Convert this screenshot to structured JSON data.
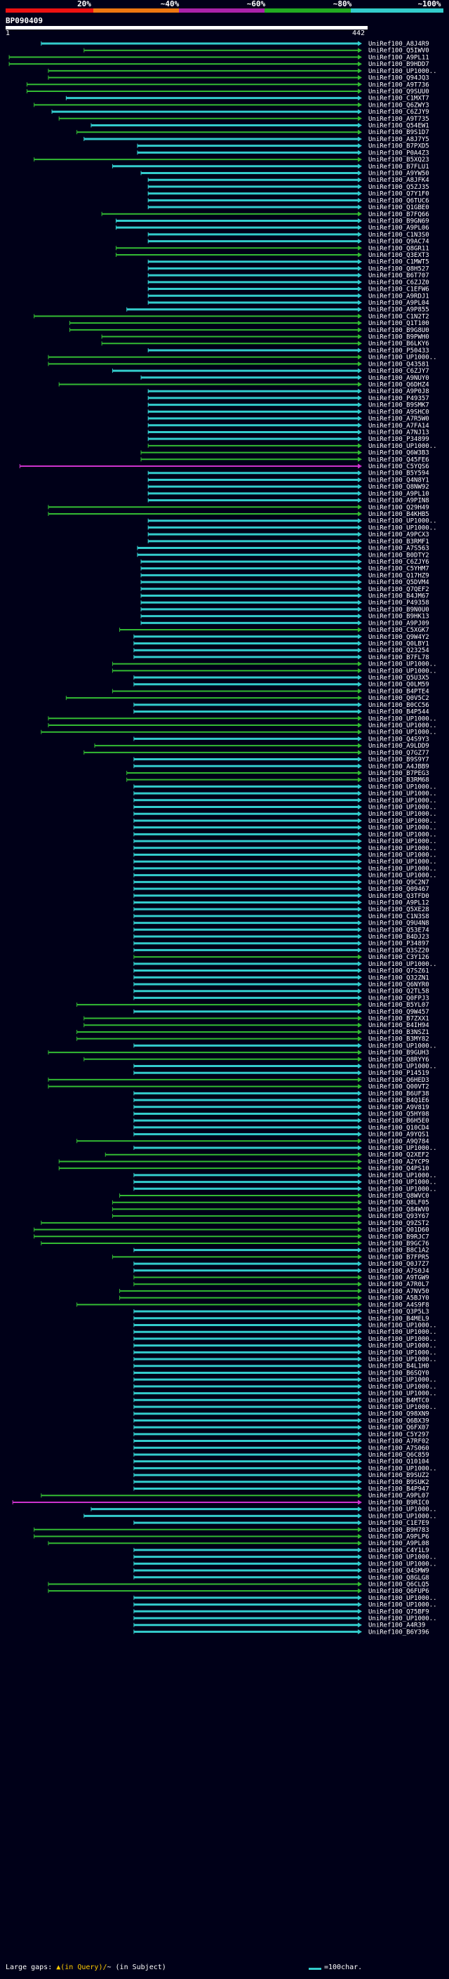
{
  "legend": {
    "percent_labels": [
      "20%",
      "~40%",
      "~60%",
      "~80%",
      "~100%"
    ],
    "segment_colors": [
      "#ee1111",
      "#ee7711",
      "#aa22aa",
      "#22aa22",
      "#33cccc"
    ]
  },
  "query": {
    "name": "BP090409",
    "start": "1",
    "end": "442"
  },
  "hit_colors": {
    "cyan": "#33cccc",
    "green": "#33bb33",
    "magenta": "#cc33cc",
    "gap": "#ffcc00"
  },
  "hits": [
    [
      "UniRef100_A8J4R9",
      "cyan",
      0.1
    ],
    [
      "UniRef100_Q5IWV0",
      "green",
      0.22
    ],
    [
      "UniRef100_A9PL11",
      "green",
      0.01
    ],
    [
      "UniRef100_B9HDD7",
      "green",
      0.01
    ],
    [
      "UniRef100_UP1000..",
      "green",
      0.12
    ],
    [
      "UniRef100_Q94JQ3",
      "green",
      0.12
    ],
    [
      "UniRef100_A9T736",
      "green",
      0.06
    ],
    [
      "UniRef100_Q9SUU0",
      "green",
      0.06
    ],
    [
      "UniRef100_C1MXT7",
      "cyan",
      0.17
    ],
    [
      "UniRef100_Q6ZWY3",
      "green",
      0.08
    ],
    [
      "UniRef100_C6ZJY9",
      "cyan",
      0.13
    ],
    [
      "UniRef100_A9T735",
      "green",
      0.15
    ],
    [
      "UniRef100_Q54EW1",
      "cyan",
      0.24
    ],
    [
      "UniRef100_B9S1D7",
      "green",
      0.2
    ],
    [
      "UniRef100_A8J7Y5",
      "cyan",
      0.22
    ],
    [
      "UniRef100_B7PXD5",
      "cyan",
      0.37
    ],
    [
      "UniRef100_P0A4Z3",
      "cyan",
      0.37
    ],
    [
      "UniRef100_B5XQ23",
      "green",
      0.08
    ],
    [
      "UniRef100_B7FLU1",
      "cyan",
      0.3
    ],
    [
      "UniRef100_A9YW50",
      "cyan",
      0.38
    ],
    [
      "UniRef100_A8JFK4",
      "cyan",
      0.4
    ],
    [
      "UniRef100_Q5ZJ35",
      "cyan",
      0.4
    ],
    [
      "UniRef100_Q7Y1F0",
      "cyan",
      0.4
    ],
    [
      "UniRef100_Q6TUC6",
      "cyan",
      0.4
    ],
    [
      "UniRef100_Q1GBE0",
      "cyan",
      0.4
    ],
    [
      "UniRef100_B7FQ66",
      "green",
      0.27
    ],
    [
      "UniRef100_B9GN69",
      "cyan",
      0.31
    ],
    [
      "UniRef100_A9PL06",
      "cyan",
      0.31
    ],
    [
      "UniRef100_C1N3S0",
      "cyan",
      0.4
    ],
    [
      "UniRef100_Q9AC74",
      "cyan",
      0.4
    ],
    [
      "UniRef100_Q8GR11",
      "green",
      0.31
    ],
    [
      "UniRef100_Q3EXT3",
      "green",
      0.31
    ],
    [
      "UniRef100_C1MWT5",
      "cyan",
      0.4
    ],
    [
      "UniRef100_Q8H527",
      "cyan",
      0.4
    ],
    [
      "UniRef100_B6T707",
      "cyan",
      0.4
    ],
    [
      "UniRef100_C6ZJZ0",
      "cyan",
      0.4
    ],
    [
      "UniRef100_C1EFW6",
      "cyan",
      0.4
    ],
    [
      "UniRef100_A9RDJ1",
      "cyan",
      0.4
    ],
    [
      "UniRef100_A9PL04",
      "cyan",
      0.4
    ],
    [
      "UniRef100_A9P855",
      "cyan",
      0.34
    ],
    [
      "UniRef100_C1N2T2",
      "green",
      0.08
    ],
    [
      "UniRef100_Q1T100",
      "green",
      0.18
    ],
    [
      "UniRef100_B9G8U0",
      "green",
      0.18
    ],
    [
      "UniRef100_B9PWH0",
      "green",
      0.27
    ],
    [
      "UniRef100_B6LKY6",
      "green",
      0.27
    ],
    [
      "UniRef100_P50433",
      "cyan",
      0.4
    ],
    [
      "UniRef100_UP1000..",
      "green",
      0.12
    ],
    [
      "UniRef100_Q43581",
      "green",
      0.12
    ],
    [
      "UniRef100_C6ZJY7",
      "cyan",
      0.3
    ],
    [
      "UniRef100_A9NUY0",
      "cyan",
      0.38
    ],
    [
      "UniRef100_Q6DHZ4",
      "green",
      0.15
    ],
    [
      "UniRef100_A9P0J8",
      "cyan",
      0.4
    ],
    [
      "UniRef100_P49357",
      "cyan",
      0.4
    ],
    [
      "UniRef100_B9SMK7",
      "cyan",
      0.4
    ],
    [
      "UniRef100_A9SHC0",
      "cyan",
      0.4
    ],
    [
      "UniRef100_A7R5W0",
      "cyan",
      0.4
    ],
    [
      "UniRef100_A7FA14",
      "cyan",
      0.4
    ],
    [
      "UniRef100_A7NJ13",
      "cyan",
      0.4
    ],
    [
      "UniRef100_P34899",
      "cyan",
      0.4
    ],
    [
      "UniRef100_UP1000..",
      "green",
      0.4
    ],
    [
      "UniRef100_Q6W3B3",
      "green",
      0.38
    ],
    [
      "UniRef100_Q45FE6",
      "green",
      0.38
    ],
    [
      "UniRef100_C5YQS6",
      "magenta",
      0.04
    ],
    [
      "UniRef100_B5Y594",
      "cyan",
      0.4
    ],
    [
      "UniRef100_Q4N8Y1",
      "cyan",
      0.4
    ],
    [
      "UniRef100_Q8NW92",
      "cyan",
      0.4
    ],
    [
      "UniRef100_A9PL10",
      "cyan",
      0.4
    ],
    [
      "UniRef100_A9PIN8",
      "cyan",
      0.4
    ],
    [
      "UniRef100_Q29H49",
      "green",
      0.12
    ],
    [
      "UniRef100_B4KHB5",
      "green",
      0.12
    ],
    [
      "UniRef100_UP1000..",
      "cyan",
      0.4
    ],
    [
      "UniRef100_UP1000..",
      "cyan",
      0.4
    ],
    [
      "UniRef100_A9PCX3",
      "cyan",
      0.4
    ],
    [
      "UniRef100_B3RMF1",
      "cyan",
      0.4
    ],
    [
      "UniRef100_A7S563",
      "cyan",
      0.37
    ],
    [
      "UniRef100_B0DTY2",
      "cyan",
      0.37
    ],
    [
      "UniRef100_C6ZJY6",
      "cyan",
      0.38
    ],
    [
      "UniRef100_C5YHM7",
      "cyan",
      0.38
    ],
    [
      "UniRef100_Q17HZ9",
      "cyan",
      0.38
    ],
    [
      "UniRef100_Q5DVM4",
      "cyan",
      0.38
    ],
    [
      "UniRef100_Q7QEF2",
      "cyan",
      0.38
    ],
    [
      "UniRef100_B4JM67",
      "cyan",
      0.38
    ],
    [
      "UniRef100_P49358",
      "cyan",
      0.38
    ],
    [
      "UniRef100_B9N0U0",
      "cyan",
      0.38
    ],
    [
      "UniRef100_B9HK13",
      "cyan",
      0.38
    ],
    [
      "UniRef100_A9PJ09",
      "cyan",
      0.38
    ],
    [
      "UniRef100_C5XGK7",
      "green",
      0.32
    ],
    [
      "UniRef100_Q9W4Y2",
      "cyan",
      0.36
    ],
    [
      "UniRef100_Q0LBY1",
      "cyan",
      0.36
    ],
    [
      "UniRef100_Q23254",
      "cyan",
      0.36
    ],
    [
      "UniRef100_B7FL78",
      "cyan",
      0.36
    ],
    [
      "UniRef100_UP1000..",
      "green",
      0.3
    ],
    [
      "UniRef100_UP1000..",
      "green",
      0.3
    ],
    [
      "UniRef100_Q5U3X5",
      "cyan",
      0.36
    ],
    [
      "UniRef100_Q0LM59",
      "cyan",
      0.36
    ],
    [
      "UniRef100_B4PTE4",
      "green",
      0.3
    ],
    [
      "UniRef100_Q0V5C2",
      "green",
      0.17
    ],
    [
      "UniRef100_B0CC56",
      "cyan",
      0.36
    ],
    [
      "UniRef100_B4P544",
      "cyan",
      0.36
    ],
    [
      "UniRef100_UP1000..",
      "green",
      0.12
    ],
    [
      "UniRef100_UP1000..",
      "green",
      0.12
    ],
    [
      "UniRef100_UP1000..",
      "green",
      0.1
    ],
    [
      "UniRef100_Q4S9Y3",
      "cyan",
      0.36
    ],
    [
      "UniRef100_A9LDD9",
      "green",
      0.25
    ],
    [
      "UniRef100_Q7GZ77",
      "green",
      0.22
    ],
    [
      "UniRef100_B9S9Y7",
      "cyan",
      0.36
    ],
    [
      "UniRef100_A4JBB9",
      "cyan",
      0.36
    ],
    [
      "UniRef100_B7PEG3",
      "green",
      0.34
    ],
    [
      "UniRef100_B3RM68",
      "green",
      0.34
    ],
    [
      "UniRef100_UP1000..",
      "cyan",
      0.36
    ],
    [
      "UniRef100_UP1000..",
      "cyan",
      0.36
    ],
    [
      "UniRef100_UP1000..",
      "cyan",
      0.36
    ],
    [
      "UniRef100_UP1000..",
      "cyan",
      0.36
    ],
    [
      "UniRef100_UP1000..",
      "cyan",
      0.36
    ],
    [
      "UniRef100_UP1000..",
      "cyan",
      0.36
    ],
    [
      "UniRef100_UP1000..",
      "cyan",
      0.36
    ],
    [
      "UniRef100_UP1000..",
      "cyan",
      0.36
    ],
    [
      "UniRef100_UP1000..",
      "cyan",
      0.36
    ],
    [
      "UniRef100_UP1000..",
      "cyan",
      0.36
    ],
    [
      "UniRef100_UP1000..",
      "cyan",
      0.36
    ],
    [
      "UniRef100_UP1000..",
      "cyan",
      0.36
    ],
    [
      "UniRef100_UP1000..",
      "cyan",
      0.36
    ],
    [
      "UniRef100_UP1000..",
      "cyan",
      0.36
    ],
    [
      "UniRef100_Q9C2N7",
      "cyan",
      0.36
    ],
    [
      "UniRef100_Q09467",
      "cyan",
      0.36
    ],
    [
      "UniRef100_Q3TFD0",
      "cyan",
      0.36
    ],
    [
      "UniRef100_A9PL12",
      "cyan",
      0.36
    ],
    [
      "UniRef100_Q5XE28",
      "cyan",
      0.36
    ],
    [
      "UniRef100_C1N3S8",
      "cyan",
      0.36
    ],
    [
      "UniRef100_Q9U4N8",
      "cyan",
      0.36
    ],
    [
      "UniRef100_Q53E74",
      "cyan",
      0.36
    ],
    [
      "UniRef100_B4DJ23",
      "cyan",
      0.36
    ],
    [
      "UniRef100_P34897",
      "cyan",
      0.36
    ],
    [
      "UniRef100_Q3SZ20",
      "cyan",
      0.36
    ],
    [
      "UniRef100_C3Y126",
      "green",
      0.36
    ],
    [
      "UniRef100_UP1000..",
      "cyan",
      0.36
    ],
    [
      "UniRef100_Q7SZ61",
      "cyan",
      0.36
    ],
    [
      "UniRef100_Q32ZN1",
      "cyan",
      0.36
    ],
    [
      "UniRef100_Q6NYR0",
      "cyan",
      0.36
    ],
    [
      "UniRef100_Q2TL58",
      "cyan",
      0.36
    ],
    [
      "UniRef100_Q0FPJ3",
      "cyan",
      0.36
    ],
    [
      "UniRef100_B5YL07",
      "green",
      0.2
    ],
    [
      "UniRef100_Q9W457",
      "cyan",
      0.36
    ],
    [
      "UniRef100_B7ZXX1",
      "green",
      0.22
    ],
    [
      "UniRef100_B4IH94",
      "green",
      0.22
    ],
    [
      "UniRef100_B3NSZ1",
      "green",
      0.2
    ],
    [
      "UniRef100_B3MY82",
      "green",
      0.2
    ],
    [
      "UniRef100_UP1000..",
      "cyan",
      0.36
    ],
    [
      "UniRef100_B9GUH3",
      "green",
      0.12
    ],
    [
      "UniRef100_Q8RYY6",
      "green",
      0.22
    ],
    [
      "UniRef100_UP1000..",
      "cyan",
      0.36
    ],
    [
      "UniRef100_P14519",
      "cyan",
      0.36
    ],
    [
      "UniRef100_Q6HED3",
      "green",
      0.12
    ],
    [
      "UniRef100_Q00VT2",
      "green",
      0.12
    ],
    [
      "UniRef100_B6UF38",
      "cyan",
      0.36
    ],
    [
      "UniRef100_B4Q1E6",
      "cyan",
      0.36
    ],
    [
      "UniRef100_A9V819",
      "cyan",
      0.36
    ],
    [
      "UniRef100_Q5HY08",
      "cyan",
      0.36
    ],
    [
      "UniRef100_B6H5E0",
      "cyan",
      0.36
    ],
    [
      "UniRef100_Q10CD4",
      "cyan",
      0.36
    ],
    [
      "UniRef100_A9YQS1",
      "cyan",
      0.36
    ],
    [
      "UniRef100_A9Q784",
      "green",
      0.2
    ],
    [
      "UniRef100_UP1000..",
      "cyan",
      0.36
    ],
    [
      "UniRef100_Q2XEF2",
      "green",
      0.28
    ],
    [
      "UniRef100_A2YCP9",
      "green",
      0.15
    ],
    [
      "UniRef100_Q4PS10",
      "green",
      0.15
    ],
    [
      "UniRef100_UP1000..",
      "cyan",
      0.36
    ],
    [
      "UniRef100_UP1000..",
      "cyan",
      0.36
    ],
    [
      "UniRef100_UP1000..",
      "cyan",
      0.36
    ],
    [
      "UniRef100_Q8WVC0",
      "green",
      0.32
    ],
    [
      "UniRef100_Q8LF05",
      "green",
      0.3
    ],
    [
      "UniRef100_Q84WV0",
      "green",
      0.3
    ],
    [
      "UniRef100_Q93Y67",
      "green",
      0.3
    ],
    [
      "UniRef100_Q9ZST2",
      "green",
      0.1
    ],
    [
      "UniRef100_Q01D60",
      "green",
      0.08
    ],
    [
      "UniRef100_B9RJC7",
      "green",
      0.08
    ],
    [
      "UniRef100_B9GC76",
      "green",
      0.1
    ],
    [
      "UniRef100_B8C1A2",
      "cyan",
      0.36
    ],
    [
      "UniRef100_B7FPR5",
      "green",
      0.3
    ],
    [
      "UniRef100_Q0J7Z7",
      "cyan",
      0.36
    ],
    [
      "UniRef100_A7S0J4",
      "cyan",
      0.36
    ],
    [
      "UniRef100_A9TGW9",
      "green",
      0.36
    ],
    [
      "UniRef100_A7R0L7",
      "green",
      0.36
    ],
    [
      "UniRef100_A7NV50",
      "green",
      0.32
    ],
    [
      "UniRef100_A5BJY0",
      "green",
      0.32
    ],
    [
      "UniRef100_A4S9F8",
      "green",
      0.2
    ],
    [
      "UniRef100_Q3P5L3",
      "cyan",
      0.36
    ],
    [
      "UniRef100_B4MEL9",
      "cyan",
      0.36
    ],
    [
      "UniRef100_UP1000..",
      "cyan",
      0.36
    ],
    [
      "UniRef100_UP1000..",
      "cyan",
      0.36
    ],
    [
      "UniRef100_UP1000..",
      "cyan",
      0.36
    ],
    [
      "UniRef100_UP1000..",
      "cyan",
      0.36
    ],
    [
      "UniRef100_UP1000..",
      "cyan",
      0.36
    ],
    [
      "UniRef100_UP1000..",
      "cyan",
      0.36
    ],
    [
      "UniRef100_B4L1H0",
      "cyan",
      0.36
    ],
    [
      "UniRef100_B6SQY0",
      "cyan",
      0.36
    ],
    [
      "UniRef100_UP1000..",
      "cyan",
      0.36
    ],
    [
      "UniRef100_UP1000..",
      "cyan",
      0.36
    ],
    [
      "UniRef100_UP1000..",
      "cyan",
      0.36
    ],
    [
      "UniRef100_B4MTC0",
      "cyan",
      0.36
    ],
    [
      "UniRef100_UP1000..",
      "cyan",
      0.36
    ],
    [
      "UniRef100_Q98XN9",
      "cyan",
      0.36
    ],
    [
      "UniRef100_Q6BX39",
      "cyan",
      0.36
    ],
    [
      "UniRef100_Q6FX07",
      "cyan",
      0.36
    ],
    [
      "UniRef100_C5Y297",
      "cyan",
      0.36
    ],
    [
      "UniRef100_A7RF02",
      "cyan",
      0.36
    ],
    [
      "UniRef100_A7S060",
      "cyan",
      0.36
    ],
    [
      "UniRef100_Q6C859",
      "cyan",
      0.36
    ],
    [
      "UniRef100_Q10104",
      "cyan",
      0.36
    ],
    [
      "UniRef100_UP1000..",
      "cyan",
      0.36
    ],
    [
      "UniRef100_B9SUZ2",
      "cyan",
      0.36
    ],
    [
      "UniRef100_B9SUK2",
      "cyan",
      0.36
    ],
    [
      "UniRef100_B4P947",
      "cyan",
      0.36
    ],
    [
      "UniRef100_A9PL07",
      "green",
      0.1
    ],
    [
      "UniRef100_B9RIC0",
      "magenta",
      0.02
    ],
    [
      "UniRef100_UP1000..",
      "cyan",
      0.24
    ],
    [
      "UniRef100_UP1000..",
      "cyan",
      0.22
    ],
    [
      "UniRef100_C1E7E9",
      "cyan",
      0.36
    ],
    [
      "UniRef100_B9H783",
      "green",
      0.08
    ],
    [
      "UniRef100_A9PLP6",
      "green",
      0.08
    ],
    [
      "UniRef100_A9PL08",
      "green",
      0.12
    ],
    [
      "UniRef100_C4Y1L9",
      "cyan",
      0.36
    ],
    [
      "UniRef100_UP1000..",
      "cyan",
      0.36
    ],
    [
      "UniRef100_UP1000..",
      "cyan",
      0.36
    ],
    [
      "UniRef100_Q4SMW9",
      "cyan",
      0.36
    ],
    [
      "UniRef100_Q8GLG8",
      "cyan",
      0.36
    ],
    [
      "UniRef100_Q6CLQ5",
      "green",
      0.12
    ],
    [
      "UniRef100_Q6FUP6",
      "green",
      0.12
    ],
    [
      "UniRef100_UP1000..",
      "cyan",
      0.36
    ],
    [
      "UniRef100_UP1000..",
      "cyan",
      0.36
    ],
    [
      "UniRef100_Q75BF9",
      "cyan",
      0.36
    ],
    [
      "UniRef100_UP1000..",
      "cyan",
      0.36
    ],
    [
      "UniRef100_A4R39",
      "cyan",
      0.36
    ],
    [
      "UniRef100_B6Y396",
      "cyan",
      0.36
    ]
  ],
  "footer": {
    "text_large_gaps": "Large gaps: ",
    "gap_in_query": "▲(in Query)/",
    "gap_in_subject": "~ (in Subject)",
    "scale_text": "=100char."
  }
}
